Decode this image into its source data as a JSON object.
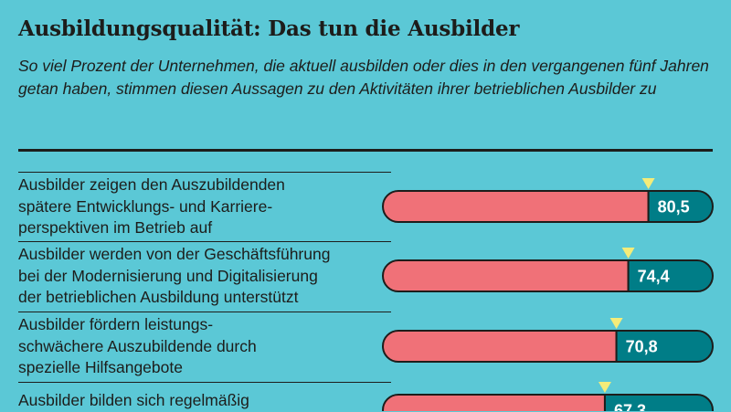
{
  "title": "Ausbildungsqualität: Das tun die Ausbilder",
  "subtitle": "So viel Prozent der Unternehmen, die aktuell ausbilden oder dies in den vergangenen fünf Jahren getan haben, stimmen diesen Aussagen zu den Aktivitäten ihrer betrieblichen Ausbilder zu",
  "colors": {
    "background": "#5bc8d6",
    "bar_remainder": "#f07178",
    "bar_value": "#007d87",
    "marker": "#f4ec79"
  },
  "chart_data": {
    "type": "bar",
    "orientation": "horizontal",
    "xlim": [
      0,
      100
    ],
    "categories": [
      "Ausbilder zeigen den Auszubildenden spätere Entwicklungs- und Karriere-perspektiven im Betrieb auf",
      "Ausbilder werden von der Geschäftsführung bei der Modernisierung und Digitalisierung der betrieblichen Ausbildung unterstützt",
      "Ausbilder fördern leistungs-schwächere Auszubildende durch spezielle Hilfsangebote",
      "Ausbilder bilden sich regelmäßig"
    ],
    "category_lines": [
      [
        "Ausbilder zeigen den Auszubildenden",
        "spätere Entwicklungs- und Karriere-",
        "perspektiven im Betrieb auf"
      ],
      [
        "Ausbilder werden von der Geschäftsführung",
        "bei der Modernisierung und Digitalisierung",
        "der betrieblichen Ausbildung unterstützt"
      ],
      [
        "Ausbilder fördern leistungs-",
        "schwächere Auszubildende durch",
        "spezielle Hilfsangebote"
      ],
      [
        "Ausbilder bilden sich regelmäßig"
      ]
    ],
    "values": [
      80.5,
      74.4,
      70.8,
      67.3
    ],
    "value_labels": [
      "80,5",
      "74,4",
      "70,8",
      "67,3"
    ],
    "grid": false,
    "legend": "none"
  }
}
